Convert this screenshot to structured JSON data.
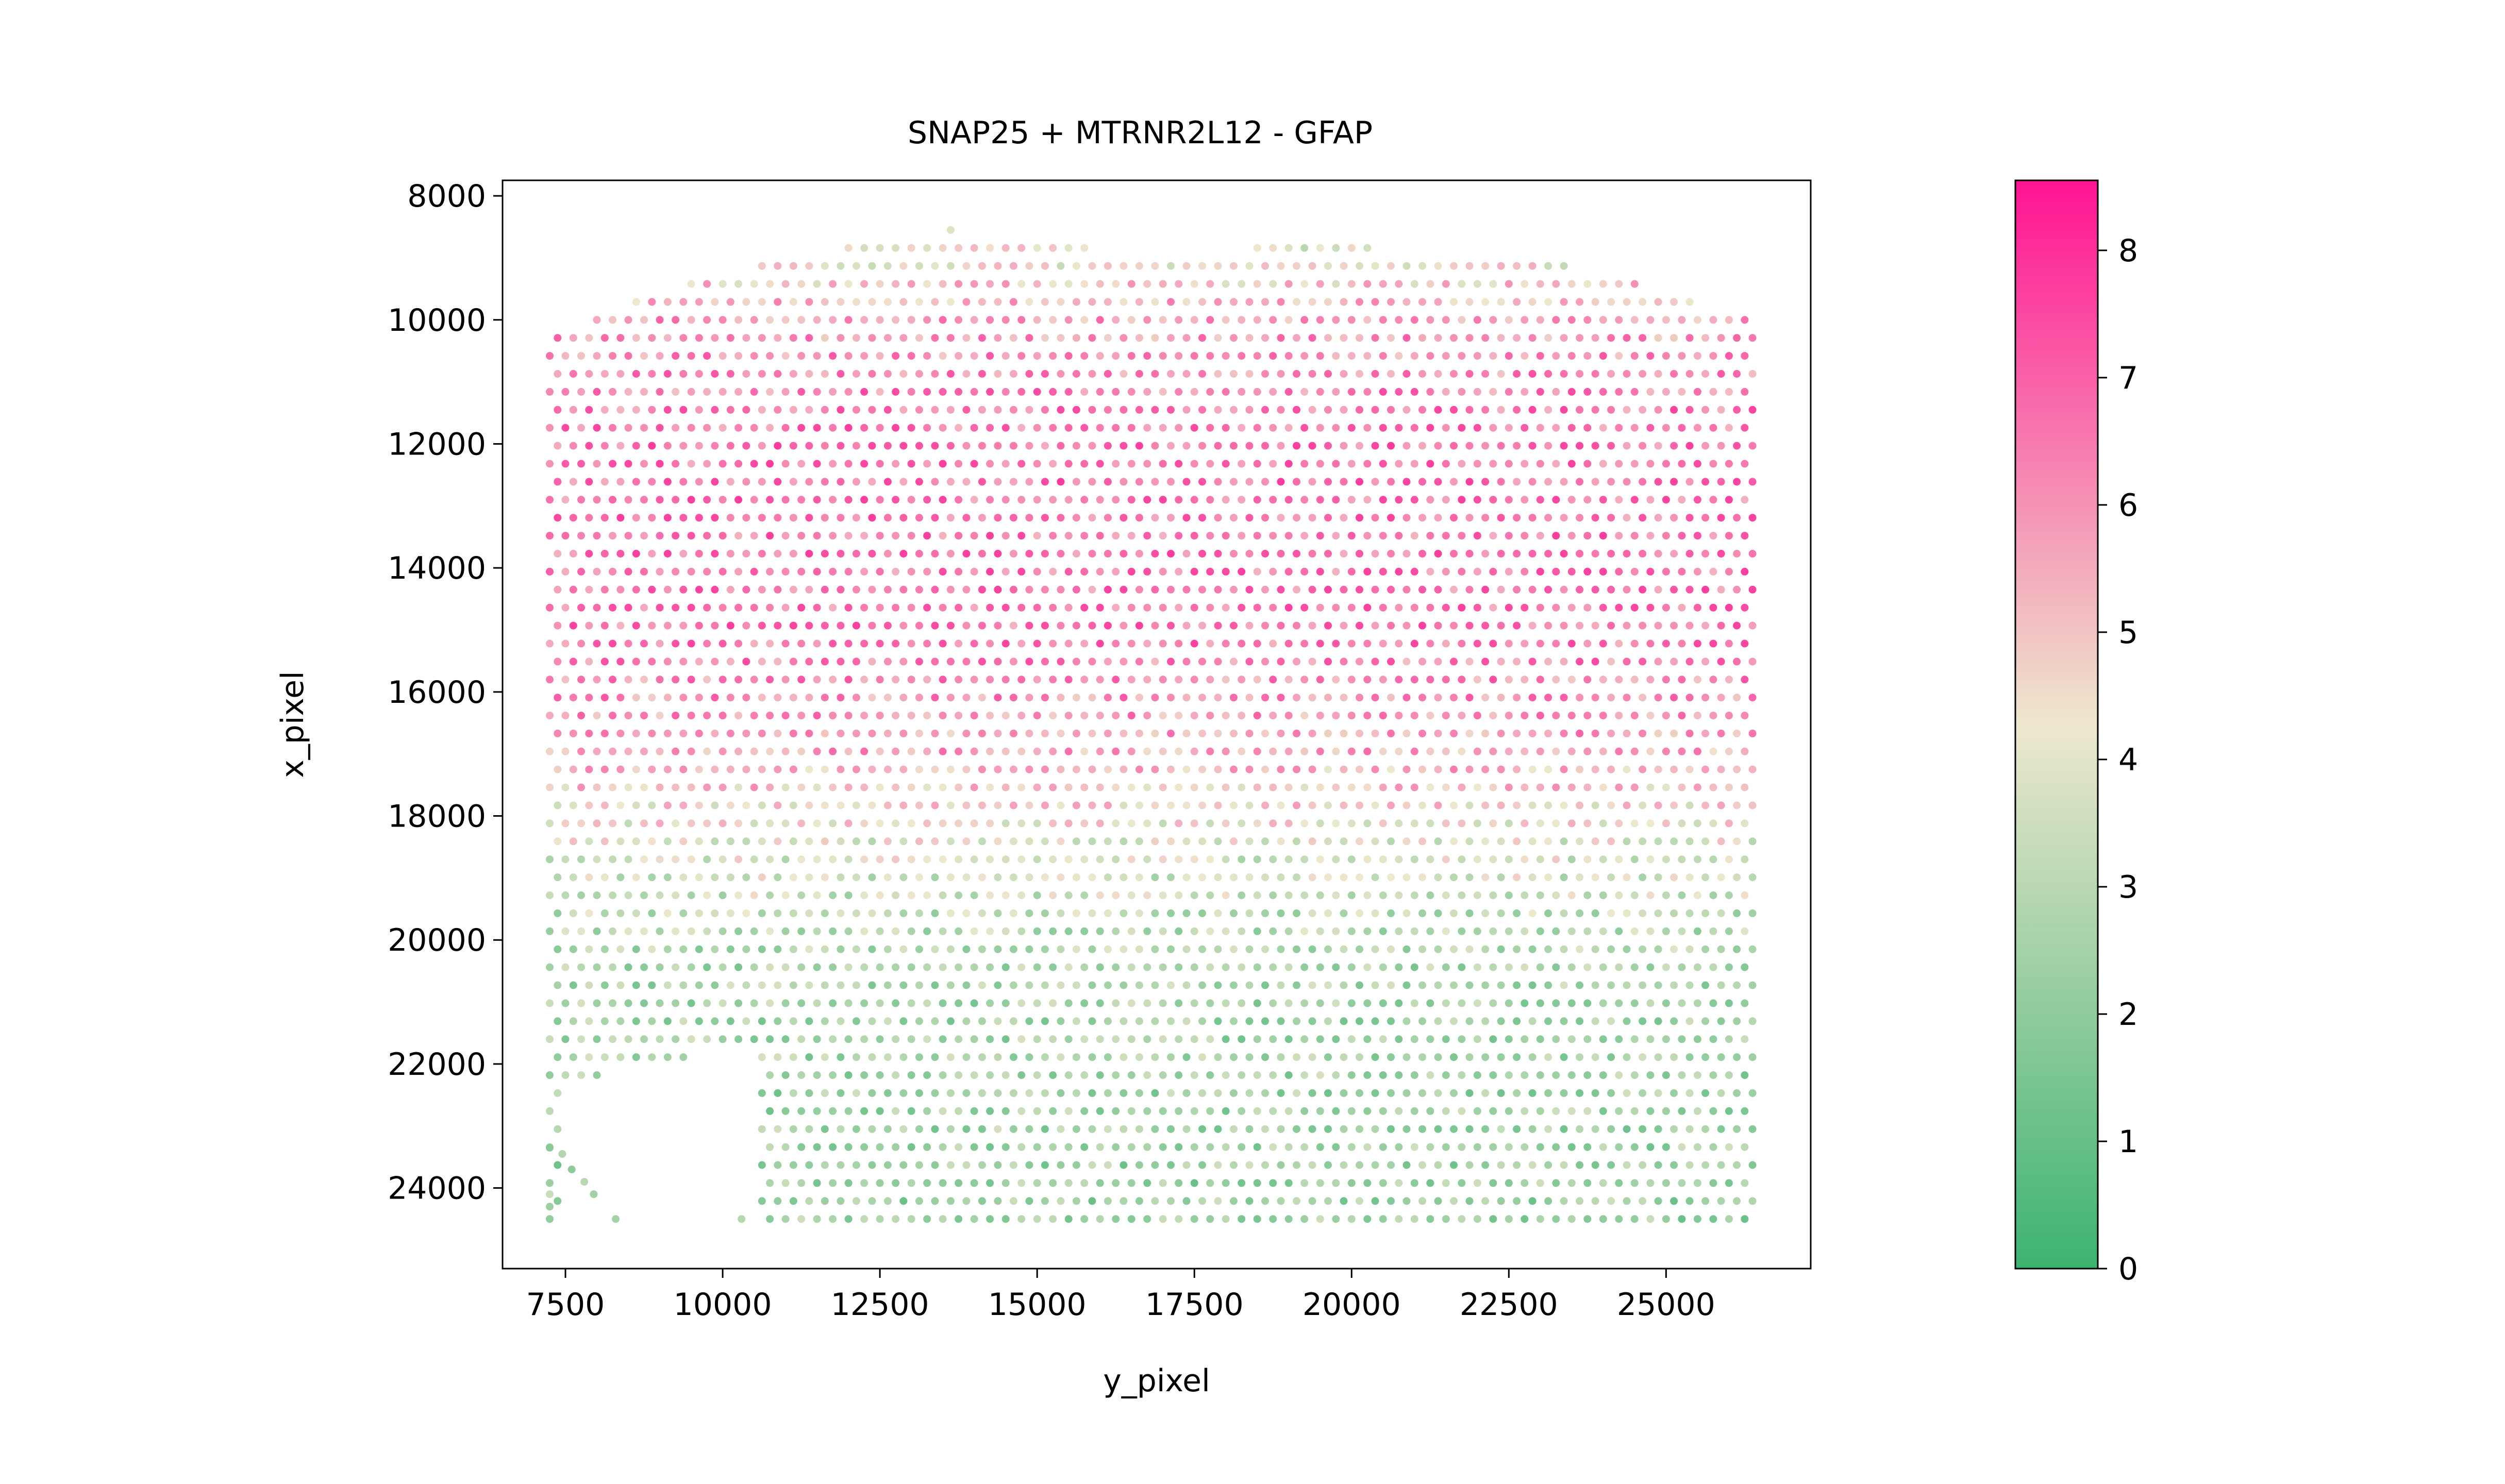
{
  "chart_data": {
    "type": "scatter",
    "title": "SNAP25 + MTRNR2L12 - GFAP",
    "xlabel": "y_pixel",
    "ylabel": "x_pixel",
    "xlim": [
      6500,
      27300
    ],
    "ylim": [
      25300,
      7750
    ],
    "y_inverted": true,
    "grid": false,
    "legend": "none",
    "x_ticks": [
      7500,
      10000,
      12500,
      15000,
      17500,
      20000,
      22500,
      25000
    ],
    "x_tick_labels": [
      "7500",
      "10000",
      "12500",
      "15000",
      "17500",
      "20000",
      "22500",
      "25000"
    ],
    "y_ticks": [
      8000,
      10000,
      12000,
      14000,
      16000,
      18000,
      20000,
      22000,
      24000
    ],
    "y_tick_labels": [
      "8000",
      "10000",
      "12000",
      "14000",
      "16000",
      "18000",
      "20000",
      "22000",
      "24000"
    ],
    "colorbar": {
      "min": 0,
      "max": 8.55,
      "ticks": [
        0,
        1,
        2,
        3,
        4,
        5,
        6,
        7,
        8
      ],
      "tick_labels": [
        "0",
        "1",
        "2",
        "3",
        "4",
        "5",
        "6",
        "7",
        "8"
      ],
      "colors": [
        "#3cb371",
        "#eee8cd",
        "#ff1493"
      ]
    },
    "spot_grid": {
      "x_range": [
        7250,
        26400
      ],
      "y_range_bottom": 24500,
      "x_step": 250,
      "y_step": 290,
      "top_boundary": [
        [
          7250,
          10300
        ],
        [
          8000,
          9950
        ],
        [
          9500,
          9450
        ],
        [
          10500,
          9150
        ],
        [
          12000,
          8850
        ],
        [
          13700,
          8550
        ],
        [
          15000,
          8850
        ],
        [
          17500,
          8950
        ],
        [
          19600,
          8800
        ],
        [
          21000,
          8950
        ],
        [
          22500,
          8950
        ],
        [
          23500,
          9150
        ],
        [
          25000,
          9550
        ],
        [
          26400,
          10000
        ]
      ],
      "missing_region": {
        "x_range": [
          7400,
          10600
        ],
        "y_start_left": 22300,
        "y_start_right": 21700,
        "remnant_spots": [
          [
            7250,
            23350
          ],
          [
            7450,
            23450
          ],
          [
            7600,
            23700
          ],
          [
            7800,
            23900
          ],
          [
            7950,
            24100
          ],
          [
            8300,
            24500
          ],
          [
            7250,
            24100
          ],
          [
            7250,
            24300
          ],
          [
            7250,
            24500
          ],
          [
            10300,
            24500
          ]
        ]
      },
      "value_profile": [
        {
          "y": 9000,
          "value": 4.2
        },
        {
          "y": 10000,
          "value": 5.8
        },
        {
          "y": 12000,
          "value": 6.6
        },
        {
          "y": 15000,
          "value": 6.5
        },
        {
          "y": 17000,
          "value": 5.6
        },
        {
          "y": 18500,
          "value": 3.9
        },
        {
          "y": 20500,
          "value": 2.6
        },
        {
          "y": 24500,
          "value": 2.3
        }
      ]
    }
  }
}
